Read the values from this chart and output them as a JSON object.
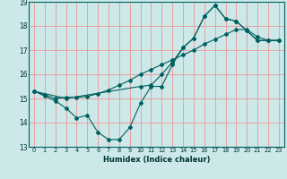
{
  "xlabel": "Humidex (Indice chaleur)",
  "bg_color": "#cce8e8",
  "grid_color": "#e8a0a0",
  "line_color": "#006060",
  "xlim": [
    -0.5,
    23.5
  ],
  "ylim": [
    13,
    19
  ],
  "xticks": [
    0,
    1,
    2,
    3,
    4,
    5,
    6,
    7,
    8,
    9,
    10,
    11,
    12,
    13,
    14,
    15,
    16,
    17,
    18,
    19,
    20,
    21,
    22,
    23
  ],
  "yticks": [
    13,
    14,
    15,
    16,
    17,
    18,
    19
  ],
  "line1_x": [
    0,
    1,
    2,
    3,
    4,
    5,
    6,
    7,
    8,
    9,
    10,
    11,
    12,
    13,
    14,
    15,
    16,
    17,
    18,
    19,
    20,
    21,
    22,
    23
  ],
  "line1_y": [
    15.3,
    15.1,
    14.9,
    14.6,
    14.2,
    14.3,
    13.6,
    13.3,
    13.3,
    13.8,
    14.8,
    15.5,
    15.5,
    16.4,
    17.1,
    17.5,
    18.4,
    18.85,
    18.3,
    18.2,
    17.8,
    17.4,
    17.4,
    17.4
  ],
  "line2_x": [
    0,
    1,
    2,
    3,
    4,
    5,
    6,
    7,
    8,
    9,
    10,
    11,
    12,
    13,
    14,
    15,
    16,
    17,
    18,
    19,
    20,
    21,
    22,
    23
  ],
  "line2_y": [
    15.3,
    15.15,
    15.0,
    15.05,
    15.05,
    15.08,
    15.2,
    15.35,
    15.55,
    15.75,
    16.0,
    16.2,
    16.4,
    16.6,
    16.8,
    17.0,
    17.25,
    17.45,
    17.65,
    17.85,
    17.85,
    17.55,
    17.4,
    17.4
  ],
  "line3_x": [
    0,
    3,
    10,
    11,
    12,
    13,
    14,
    15,
    16,
    17,
    18,
    19,
    20,
    21,
    22,
    23
  ],
  "line3_y": [
    15.3,
    15.0,
    15.5,
    15.55,
    16.0,
    16.5,
    17.1,
    17.5,
    18.4,
    18.85,
    18.3,
    18.2,
    17.8,
    17.4,
    17.4,
    17.4
  ]
}
